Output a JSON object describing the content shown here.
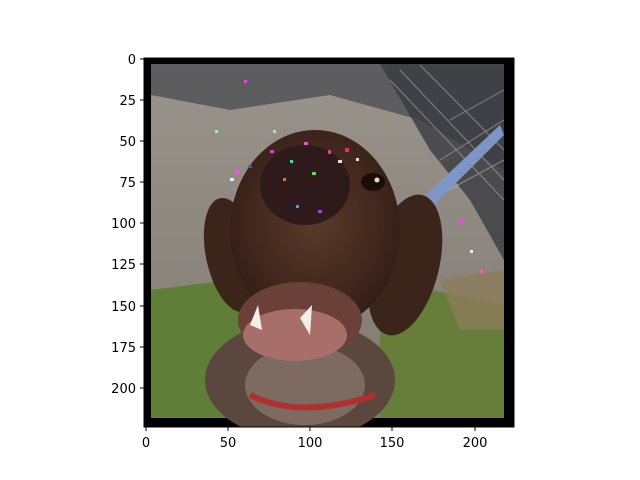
{
  "image": {
    "description_icon": "dog-photo",
    "subject": "brown-and-white dog close-up with open mouth, adversarial noise around nose"
  },
  "axes": {
    "x_ticks": [
      "0",
      "50",
      "100",
      "150",
      "200"
    ],
    "y_ticks": [
      "0",
      "25",
      "50",
      "75",
      "100",
      "125",
      "150",
      "175",
      "200"
    ],
    "x_values": [
      0,
      50,
      100,
      150,
      200
    ],
    "y_values": [
      0,
      25,
      50,
      75,
      100,
      125,
      150,
      175,
      200
    ],
    "xlim": [
      0,
      224
    ],
    "ylim": [
      224,
      0
    ]
  },
  "colors": {
    "frame": "#000000",
    "pavement": "#8f8a84",
    "grass": "#5f7f38",
    "dog_brown": "#4a2e22",
    "shadow": "#3a3a3e"
  }
}
